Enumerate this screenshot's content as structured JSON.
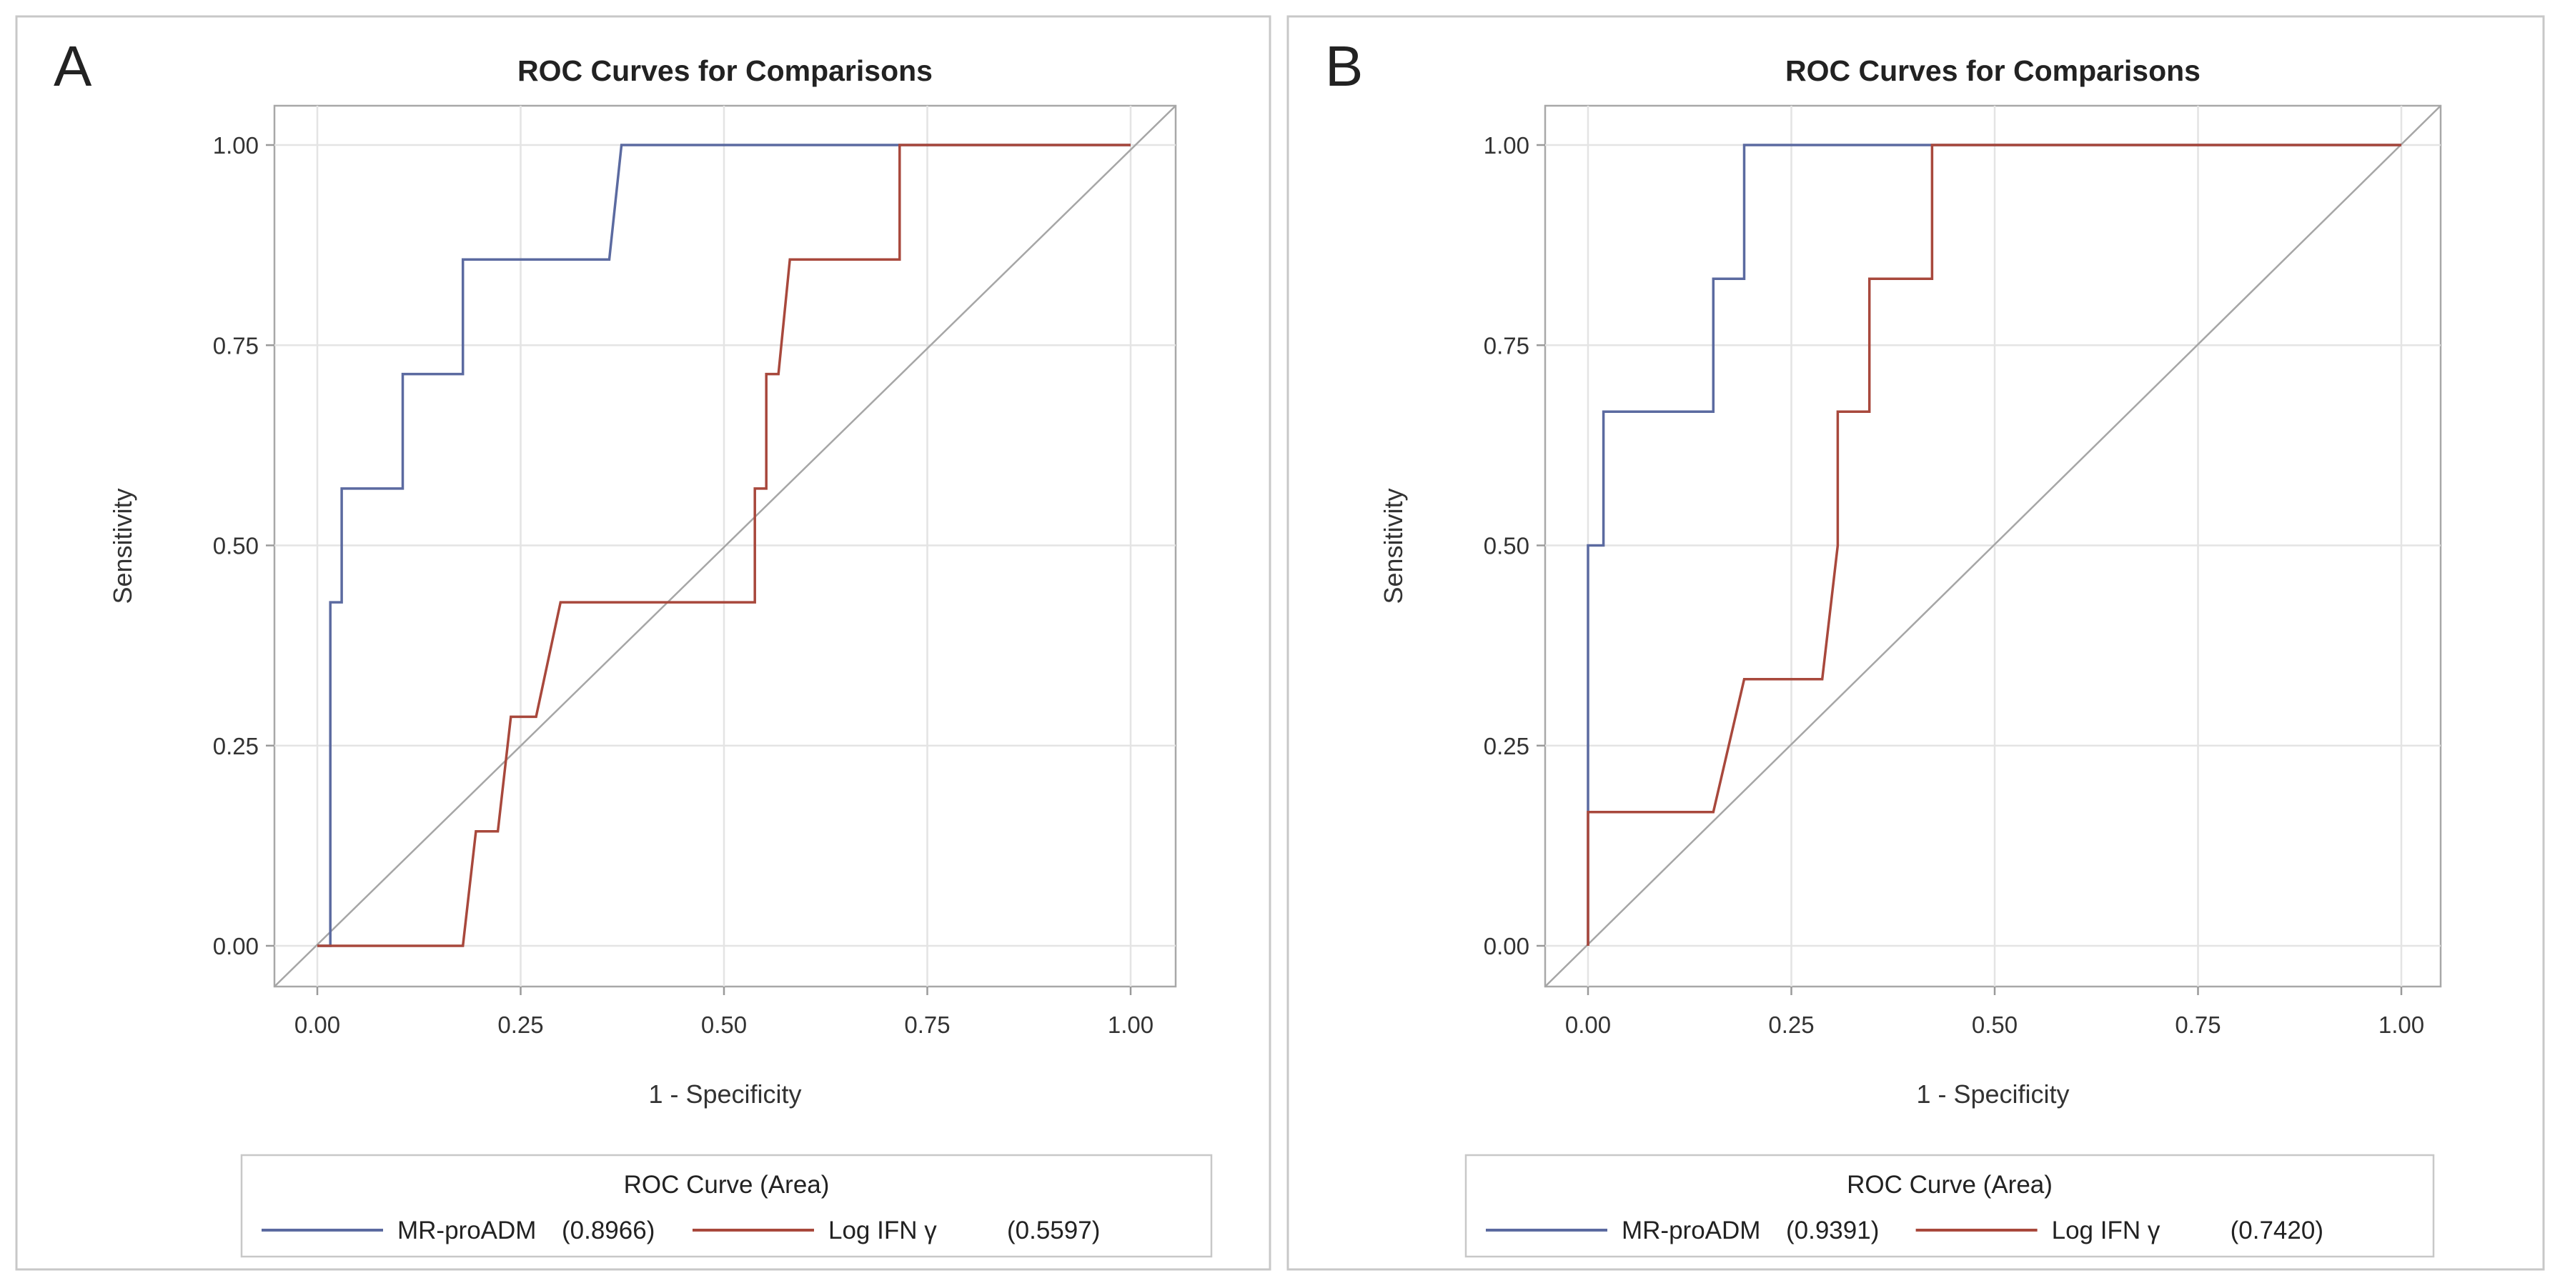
{
  "colors": {
    "MR-proADM": "#5b6aa0",
    "Log IFN γ": "#a8483c",
    "reference": "#a6a6a6"
  },
  "chart_data": [
    {
      "type": "line",
      "panel_letter": "A",
      "title": "ROC Curves for Comparisons",
      "xlabel": "1 - Specificity",
      "ylabel": "Sensitivity",
      "xlim": [
        0,
        1
      ],
      "ylim": [
        0,
        1
      ],
      "xticks": [
        "0.00",
        "0.25",
        "0.50",
        "0.75",
        "1.00"
      ],
      "yticks": [
        "0.00",
        "0.25",
        "0.50",
        "0.75",
        "1.00"
      ],
      "grid": true,
      "legend_title": "ROC Curve (Area)",
      "legend_position": "bottom",
      "series": [
        {
          "name": "MR-proADM",
          "area": "(0.8966)",
          "points": [
            [
              0,
              0
            ],
            [
              0.016,
              0
            ],
            [
              0.016,
              0.429
            ],
            [
              0.03,
              0.429
            ],
            [
              0.03,
              0.571
            ],
            [
              0.105,
              0.571
            ],
            [
              0.105,
              0.714
            ],
            [
              0.179,
              0.714
            ],
            [
              0.179,
              0.857
            ],
            [
              0.359,
              0.857
            ],
            [
              0.374,
              1
            ],
            [
              1,
              1
            ]
          ]
        },
        {
          "name": "Log IFN γ",
          "area": "(0.5597)",
          "points": [
            [
              0,
              0
            ],
            [
              0.179,
              0
            ],
            [
              0.195,
              0.143
            ],
            [
              0.222,
              0.143
            ],
            [
              0.238,
              0.286
            ],
            [
              0.269,
              0.286
            ],
            [
              0.299,
              0.429
            ],
            [
              0.538,
              0.429
            ],
            [
              0.538,
              0.571
            ],
            [
              0.552,
              0.571
            ],
            [
              0.552,
              0.714
            ],
            [
              0.567,
              0.714
            ],
            [
              0.581,
              0.857
            ],
            [
              0.716,
              0.857
            ],
            [
              0.716,
              1
            ],
            [
              1,
              1
            ]
          ]
        }
      ]
    },
    {
      "type": "line",
      "panel_letter": "B",
      "title": "ROC Curves for Comparisons",
      "xlabel": "1 - Specificity",
      "ylabel": "Sensitivity",
      "xlim": [
        0,
        1
      ],
      "ylim": [
        0,
        1
      ],
      "xticks": [
        "0.00",
        "0.25",
        "0.50",
        "0.75",
        "1.00"
      ],
      "yticks": [
        "0.00",
        "0.25",
        "0.50",
        "0.75",
        "1.00"
      ],
      "grid": true,
      "legend_title": "ROC Curve (Area)",
      "legend_position": "bottom",
      "series": [
        {
          "name": "MR-proADM",
          "area": "(0.9391)",
          "points": [
            [
              0,
              0
            ],
            [
              0,
              0.5
            ],
            [
              0.019,
              0.5
            ],
            [
              0.019,
              0.667
            ],
            [
              0.154,
              0.667
            ],
            [
              0.154,
              0.833
            ],
            [
              0.192,
              0.833
            ],
            [
              0.192,
              1
            ],
            [
              1,
              1
            ]
          ]
        },
        {
          "name": "Log IFN γ",
          "area": "(0.7420)",
          "points": [
            [
              0,
              0
            ],
            [
              0,
              0.167
            ],
            [
              0.154,
              0.167
            ],
            [
              0.192,
              0.333
            ],
            [
              0.288,
              0.333
            ],
            [
              0.307,
              0.5
            ],
            [
              0.307,
              0.667
            ],
            [
              0.346,
              0.667
            ],
            [
              0.346,
              0.833
            ],
            [
              0.423,
              0.833
            ],
            [
              0.423,
              1
            ],
            [
              1,
              1
            ]
          ]
        }
      ]
    }
  ]
}
